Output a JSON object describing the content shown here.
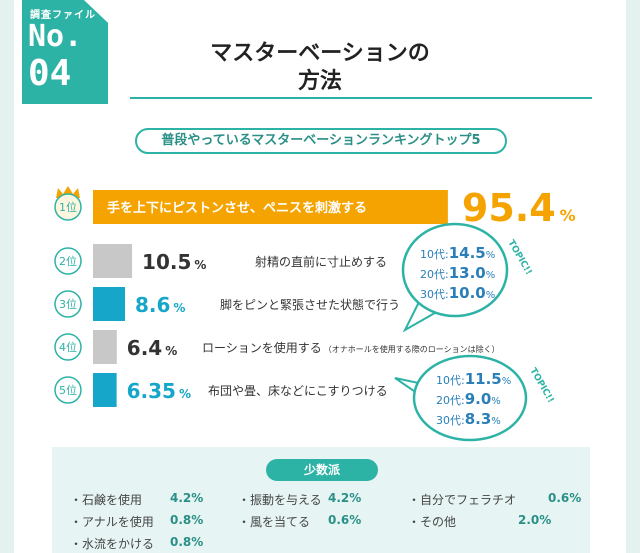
{
  "badge": {
    "kicker": "調査ファイル",
    "label": "No.",
    "number": "04"
  },
  "title_line1": "マスターベーションの",
  "title_line2": "方法",
  "subtitle": "普段やっているマスターベーションランキングトップ5",
  "colors": {
    "accent": "#2db3a6",
    "gold": "#f5a300",
    "gray": "#c8c8c8",
    "blue": "#15a6c9"
  },
  "chart_data": {
    "type": "bar",
    "title": "普段やっているマスターベーションランキングトップ5",
    "categories": [
      "手を上下にピストンさせ、ペニスを刺激する",
      "射精の直前に寸止めする",
      "脚をピンと緊張させた状態で行う",
      "ローションを使用する",
      "布団や畳、床などにこすりつける"
    ],
    "values": [
      95.4,
      10.5,
      8.6,
      6.4,
      6.35
    ],
    "ranks": [
      "1位",
      "2位",
      "3位",
      "4位",
      "5位"
    ],
    "value_labels": [
      "95.4",
      "10.5",
      "8.6",
      "6.4",
      "6.35"
    ],
    "unit": "%",
    "notes": [
      "",
      "",
      "",
      "（オナホールを使用する際のローションは除く）",
      ""
    ],
    "bar_colors": [
      "#f5a300",
      "#c8c8c8",
      "#15a6c9",
      "#c8c8c8",
      "#15a6c9"
    ],
    "orientation": "horizontal",
    "xlim": [
      0,
      100
    ]
  },
  "topics": [
    {
      "tag": "TOPIC!!",
      "lines": [
        {
          "age": "10代:",
          "value": "14.5",
          "unit": "%"
        },
        {
          "age": "20代:",
          "value": "13.0",
          "unit": "%"
        },
        {
          "age": "30代:",
          "value": "10.0",
          "unit": "%"
        }
      ]
    },
    {
      "tag": "TOPIC!!",
      "lines": [
        {
          "age": "10代:",
          "value": "11.5",
          "unit": "%"
        },
        {
          "age": "20代:",
          "value": "9.0",
          "unit": "%"
        },
        {
          "age": "30代:",
          "value": "8.3",
          "unit": "%"
        }
      ]
    }
  ],
  "minority": {
    "title": "少数派",
    "items": [
      {
        "label": "・石鹸を使用",
        "value": "4.2%"
      },
      {
        "label": "・振動を与える",
        "value": "4.2%"
      },
      {
        "label": "・自分でフェラチオ",
        "value": "0.6%"
      },
      {
        "label": "・アナルを使用",
        "value": "0.8%"
      },
      {
        "label": "・風を当てる",
        "value": "0.6%"
      },
      {
        "label": "・その他",
        "value": "2.0%"
      },
      {
        "label": "・水流をかける",
        "value": "0.8%"
      }
    ]
  }
}
